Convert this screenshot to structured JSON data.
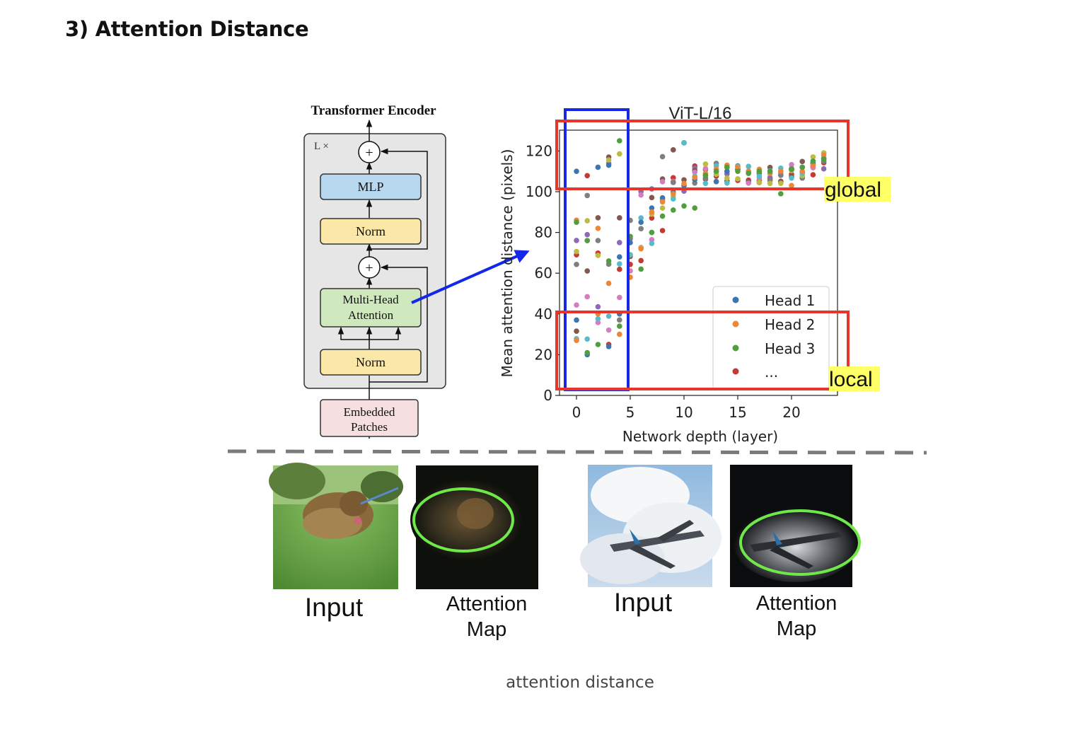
{
  "heading": "3) Attention Distance",
  "caption": "attention distance",
  "diagram": {
    "title": "Transformer Encoder",
    "repeat": "L ×",
    "plus": "+",
    "mlp": "MLP",
    "norm_top": "Norm",
    "mha_line1": "Multi-Head",
    "mha_line2": "Attention",
    "norm_bottom": "Norm",
    "embedded_line1": "Embedded",
    "embedded_line2": "Patches"
  },
  "chart_data": {
    "type": "scatter",
    "title": "ViT-L/16",
    "xlabel": "Network depth (layer)",
    "ylabel": "Mean attention distance (pixels)",
    "xlim": [
      -1,
      24
    ],
    "ylim": [
      0,
      130
    ],
    "xticks": [
      "0",
      "5",
      "10",
      "15",
      "20"
    ],
    "yticks": [
      "0",
      "20",
      "40",
      "60",
      "80",
      "100",
      "120"
    ],
    "legend_position": "lower-right",
    "legend": [
      "Head 1",
      "Head 2",
      "Head 3",
      "..."
    ],
    "series": [
      {
        "name": "Head 1",
        "color": "#3b76af",
        "x": [
          0,
          0,
          1,
          2,
          3,
          3,
          4,
          4,
          5,
          6,
          7,
          8,
          9,
          10,
          11,
          12,
          13,
          14,
          15,
          16,
          17,
          18,
          19,
          20,
          21,
          22,
          23
        ],
        "y": [
          110,
          37,
          20,
          112,
          113,
          24,
          68,
          40,
          75,
          85,
          92,
          97,
          100,
          103,
          106,
          108,
          105,
          110,
          111,
          110,
          110,
          109,
          110,
          111,
          112,
          114,
          116
        ]
      },
      {
        "name": "Head 2",
        "color": "#ef8636",
        "x": [
          0,
          0,
          1,
          2,
          2,
          3,
          4,
          5,
          6,
          7,
          8,
          9,
          10,
          11,
          12,
          13,
          14,
          15,
          16,
          17,
          18,
          19,
          20,
          21,
          22,
          23
        ],
        "y": [
          86,
          27,
          76,
          82,
          40,
          55,
          30,
          58,
          72,
          90,
          95,
          99,
          104,
          107,
          109,
          111,
          113,
          112,
          110,
          111,
          109,
          110,
          103,
          110,
          113,
          118
        ]
      },
      {
        "name": "Head 3",
        "color": "#519e3e",
        "x": [
          0,
          1,
          1,
          2,
          3,
          4,
          4,
          5,
          6,
          7,
          8,
          9,
          10,
          11,
          12,
          13,
          14,
          15,
          16,
          17,
          18,
          19,
          20,
          21,
          22,
          23
        ],
        "y": [
          85,
          76,
          21,
          25,
          66,
          125,
          34,
          78,
          62,
          80,
          88,
          91,
          93,
          92,
          108,
          110,
          112,
          110,
          109,
          110,
          110,
          99,
          111,
          112,
          115,
          116
        ]
      }
    ],
    "other_heads": {
      "name": "...",
      "colors": [
        "#c53a32",
        "#8d69b8",
        "#84584e",
        "#d57dbf",
        "#7f7f7f",
        "#bcbc45",
        "#58bbcc"
      ]
    }
  },
  "annotations": {
    "global_label": "global",
    "local_label": "local",
    "highlight_color": "#ffff66",
    "region_color": "#e8352b",
    "early_layers_color": "#1727e6",
    "arrow_color": "#1227e8",
    "circle_color": "#6fe84a"
  },
  "examples": [
    {
      "input_label": "Input",
      "map_label_line1": "Attention",
      "map_label_line2": "Map"
    },
    {
      "input_label": "Input",
      "map_label_line1": "Attention",
      "map_label_line2": "Map"
    }
  ]
}
